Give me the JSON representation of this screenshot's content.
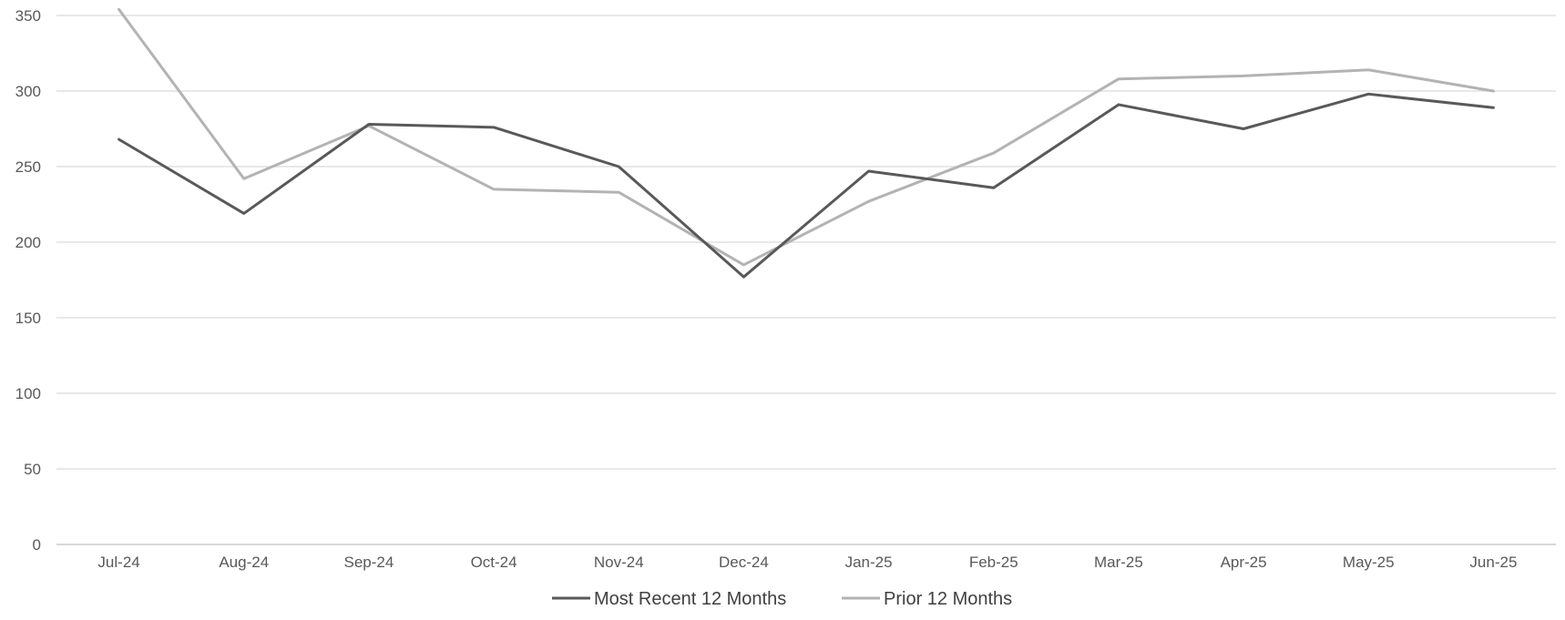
{
  "chart_data": {
    "type": "line",
    "title": "",
    "xlabel": "",
    "ylabel": "",
    "categories": [
      "Jul-24",
      "Aug-24",
      "Sep-24",
      "Oct-24",
      "Nov-24",
      "Dec-24",
      "Jan-25",
      "Feb-25",
      "Mar-25",
      "Apr-25",
      "May-25",
      "Jun-25"
    ],
    "ylim": [
      0,
      350
    ],
    "yticks": [
      0,
      50,
      100,
      150,
      200,
      250,
      300,
      350
    ],
    "grid": true,
    "legend_position": "bottom",
    "series": [
      {
        "name": "Most Recent 12 Months",
        "color": "#595959",
        "values": [
          268,
          219,
          278,
          276,
          250,
          177,
          247,
          236,
          291,
          275,
          298,
          289
        ]
      },
      {
        "name": "Prior 12 Months",
        "color": "#b3b3b3",
        "values": [
          354,
          242,
          277,
          235,
          233,
          185,
          227,
          259,
          308,
          310,
          314,
          300
        ]
      }
    ]
  }
}
